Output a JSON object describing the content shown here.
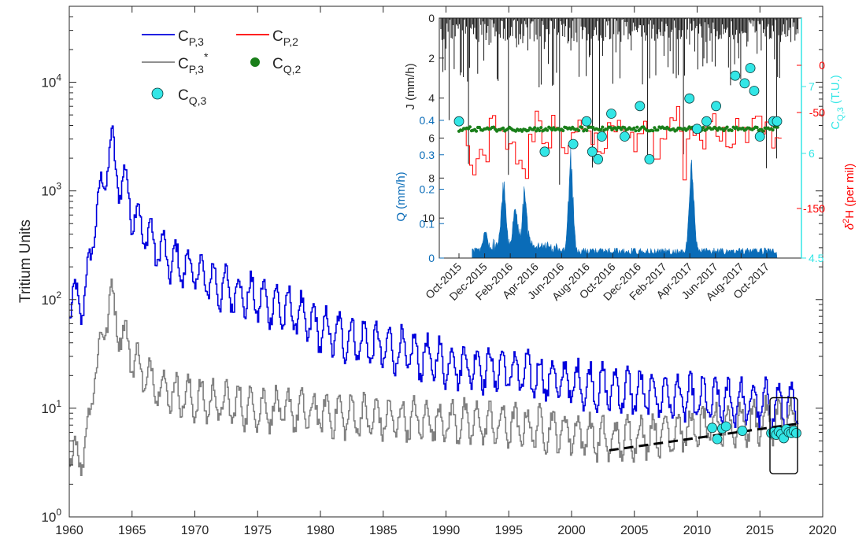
{
  "chart_data": [
    {
      "type": "line",
      "ylabel": "Tritium Units",
      "xlabel": "",
      "xlim": [
        1960,
        2020
      ],
      "ylim": [
        1,
        50000
      ],
      "yscale": "log",
      "x_ticks": [
        "1960",
        "1965",
        "1970",
        "1975",
        "1980",
        "1985",
        "1990",
        "1995",
        "2000",
        "2005",
        "2010",
        "2015",
        "2020"
      ],
      "y_ticks": [
        {
          "value": 1,
          "base": "10",
          "exp": "0"
        },
        {
          "value": 10,
          "base": "10",
          "exp": "1"
        },
        {
          "value": 100,
          "base": "10",
          "exp": "2"
        },
        {
          "value": 1000,
          "base": "10",
          "exp": "3"
        },
        {
          "value": 10000,
          "base": "10",
          "exp": "4"
        }
      ],
      "legend": {
        "placement": "top-left",
        "entries": [
          {
            "key": "cp3",
            "base": "C",
            "sub": "P,3",
            "sup": "",
            "color": "#0000dd",
            "marker": "line"
          },
          {
            "key": "cp2",
            "base": "C",
            "sub": "P,2",
            "sup": "",
            "color": "#ff0000",
            "marker": "line"
          },
          {
            "key": "cp3s",
            "base": "C",
            "sub": "P,3",
            "sup": "*",
            "color": "#808080",
            "marker": "line"
          },
          {
            "key": "cq2",
            "base": "C",
            "sub": "Q,2",
            "sup": "",
            "color": "#1a7f1a",
            "marker": "dot"
          },
          {
            "key": "cq3",
            "base": "C",
            "sub": "Q,3",
            "sup": "",
            "color": "#33e6e6",
            "marker": "circle"
          }
        ]
      },
      "series": [
        {
          "name": "C_P,3",
          "color": "#0000dd",
          "x": [
            1960.0,
            1961.0,
            1961.5,
            1962.0,
            1962.5,
            1963.0,
            1963.3,
            1963.6,
            1964.0,
            1964.5,
            1965.0,
            1966.0,
            1967.0,
            1968.0,
            1970.0,
            1972.0,
            1975.0,
            1978.0,
            1980.0,
            1985.0,
            1990.0,
            1995.0,
            2000.0,
            2005.0,
            2010.0,
            2015.0,
            2018.0
          ],
          "values": [
            95,
            95,
            160,
            600,
            900,
            1900,
            3000,
            1500,
            1300,
            1100,
            650,
            420,
            300,
            230,
            180,
            130,
            100,
            75,
            52,
            36,
            26,
            22,
            17,
            14,
            12,
            11,
            10
          ]
        },
        {
          "name": "C_P,3*",
          "color": "#808080",
          "x": [
            1960.0,
            1961.0,
            1961.5,
            1962.0,
            1962.5,
            1963.0,
            1963.3,
            1963.6,
            1964.0,
            1965.0,
            1966.0,
            1968.0,
            1970.0,
            1975.0,
            1980.0,
            1985.0,
            1990.0,
            1995.0,
            2000.0,
            2003.0,
            2005.0,
            2010.0,
            2015.0,
            2018.0
          ],
          "values": [
            3.8,
            3.8,
            6.5,
            25,
            35,
            80,
            120,
            65,
            55,
            30,
            20,
            14,
            12,
            10,
            9,
            8,
            7.5,
            7,
            6,
            5,
            5.5,
            6.5,
            7.5,
            8
          ]
        }
      ],
      "trend": {
        "x": [
          2003,
          2018
        ],
        "values": [
          4.1,
          7.2
        ]
      },
      "cq3_points": {
        "x": [
          2011.2,
          2011.6,
          2012.0,
          2012.3,
          2013.6,
          2015.9,
          2016.1,
          2016.3,
          2016.5,
          2016.7,
          2016.9,
          2017.1,
          2017.3,
          2017.5,
          2017.7,
          2017.9
        ],
        "values": [
          6.6,
          5.2,
          6.5,
          6.8,
          6.2,
          5.9,
          6.0,
          5.7,
          6.1,
          5.8,
          5.3,
          6.4,
          6.0,
          5.9,
          6.2,
          5.9
        ]
      },
      "inset_box": {
        "x": [
          2015.8,
          2018.0
        ],
        "y": [
          2.5,
          12.5
        ]
      }
    },
    {
      "type": "line",
      "dates": [
        "Oct-2015",
        "Dec-2015",
        "Feb-2016",
        "Apr-2016",
        "Jun-2016",
        "Aug-2016",
        "Oct-2016",
        "Dec-2016",
        "Feb-2017",
        "Apr-2017",
        "Jun-2017",
        "Aug-2017",
        "Oct-2017"
      ],
      "axes": {
        "J": {
          "label": "J (mm/h)",
          "ticks": [
            "0",
            "2",
            "4",
            "6",
            "8",
            "10"
          ],
          "range": [
            0,
            12
          ],
          "reversed": true
        },
        "Q": {
          "label": "Q (mm/h)",
          "ticks": [
            "0",
            "0.1",
            "0.2",
            "0.3",
            "0.4"
          ],
          "range": [
            0,
            0.4
          ]
        },
        "CQ3": {
          "label_base": "C",
          "label_sub": "Q,3",
          "label_rest": " (T.U.)",
          "ticks": [
            "4.5",
            "6",
            "7"
          ],
          "range": [
            4.5,
            7.5
          ]
        },
        "d2H": {
          "label_delta": "δ",
          "label_sup": "2",
          "label_rest": "H (per mil)",
          "ticks": [
            "-150",
            "-50",
            "0"
          ],
          "range": [
            -200,
            30
          ]
        }
      },
      "cq3_points": {
        "month": [
          0,
          9,
          12,
          13.4,
          14,
          14.6,
          15,
          16,
          17.4,
          19,
          20,
          24.2,
          25,
          26,
          27,
          29,
          30,
          30.6,
          31,
          31.6,
          33,
          33.4
        ],
        "values": [
          6.3,
          5.9,
          6.0,
          6.3,
          5.9,
          5.8,
          6.1,
          6.4,
          6.1,
          6.5,
          5.8,
          6.6,
          6.2,
          6.3,
          6.5,
          6.9,
          6.8,
          7.0,
          6.7,
          6.1,
          6.3,
          6.3
        ]
      },
      "cq2_level": -48,
      "d2H_steps": {
        "month": [
          0,
          0.5,
          1,
          2,
          3,
          4,
          5,
          6,
          7,
          8,
          9,
          10,
          11,
          12,
          13,
          14,
          15,
          16,
          17,
          18,
          19,
          20,
          21,
          22,
          23,
          24,
          25,
          26,
          27,
          28,
          29,
          30,
          31,
          32,
          33,
          34
        ],
        "values": [
          -60,
          -110,
          -90,
          -30,
          -45,
          -70,
          -100,
          -55,
          -20,
          -65,
          -40,
          -80,
          -50,
          -35,
          -60,
          -75,
          -45,
          -30,
          -55,
          -70,
          -40,
          -85,
          -50,
          -25,
          -60,
          -45,
          -70,
          -35,
          -55,
          -80,
          -40,
          -60,
          -30,
          -50,
          -65,
          -40
        ]
      }
    }
  ]
}
